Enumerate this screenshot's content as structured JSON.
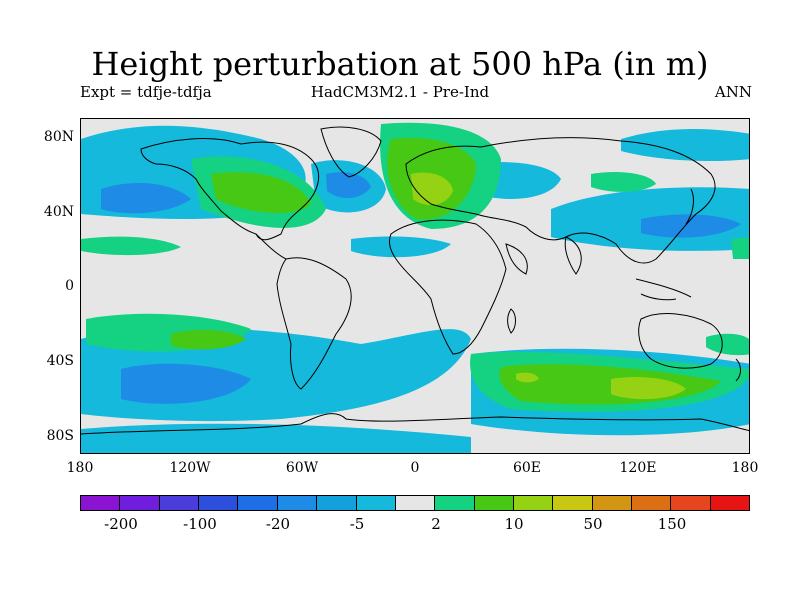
{
  "title": "Height perturbation at 500 hPa (in m)",
  "subtitle_left": "Expt = tdfje-tdfja",
  "subtitle_center": "HadCM3M2.1 - Pre-Ind",
  "subtitle_right": "ANN",
  "map": {
    "projection": "equirectangular",
    "lat_ticks": [
      "80N",
      "40N",
      "0",
      "40S",
      "80S"
    ],
    "lon_ticks": [
      "180",
      "120W",
      "60W",
      "0",
      "60E",
      "120E",
      "180"
    ],
    "background_color": "#e6e6e6",
    "coastline_color": "#000000"
  },
  "colorbar": {
    "colors": [
      "#8a14d2",
      "#6e1edc",
      "#4b3cdc",
      "#2d50dc",
      "#1e6ee6",
      "#1e8ce6",
      "#14a0dc",
      "#14b9dc",
      "#e6e6e6",
      "#14d282",
      "#46c814",
      "#96d214",
      "#c8c814",
      "#d29614",
      "#dc6e14",
      "#e6461e",
      "#e61414"
    ],
    "labels": [
      "-200",
      "-100",
      "-20",
      "-5",
      "2",
      "10",
      "50",
      "150"
    ]
  }
}
